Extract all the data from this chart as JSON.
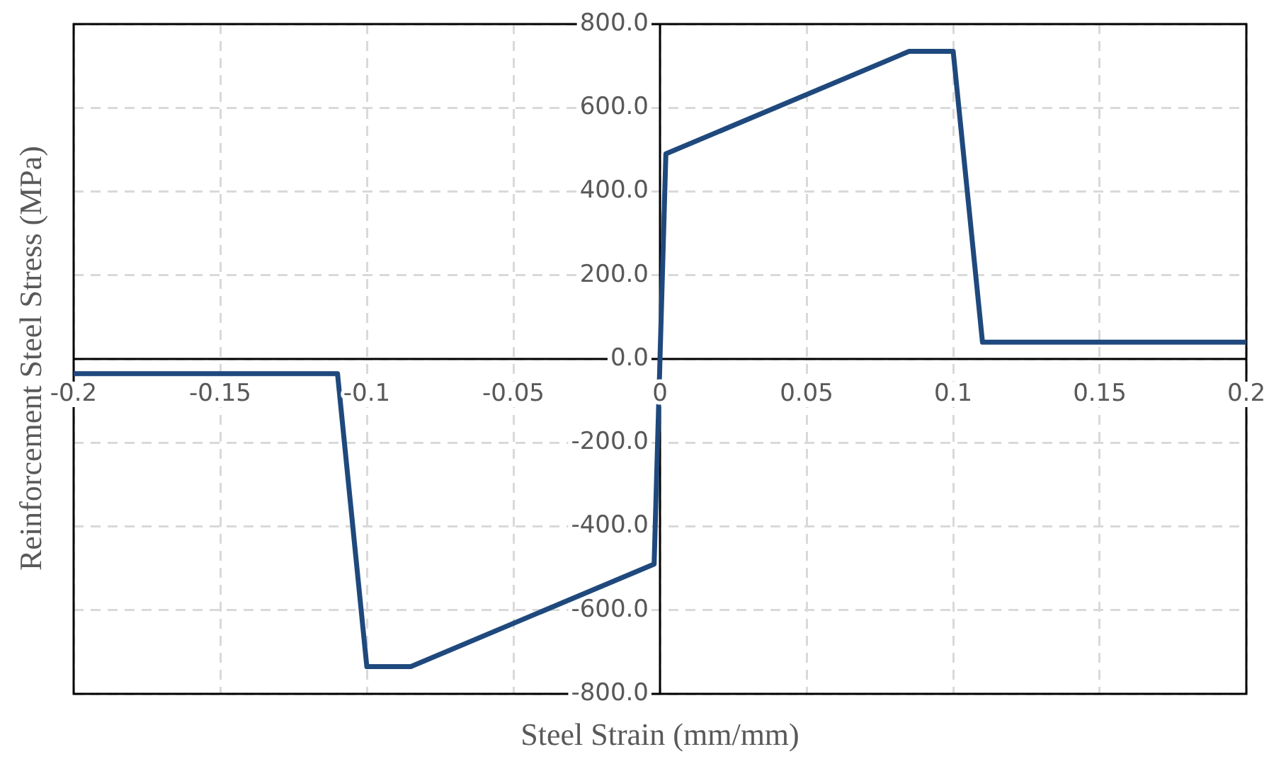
{
  "chart_data": {
    "type": "line",
    "xlabel": "Steel Strain (mm/mm)",
    "ylabel": "Reinforcement Steel Stress (MPa)",
    "x": [
      -0.2,
      -0.11,
      -0.1,
      -0.085,
      -0.002,
      0.002,
      0.085,
      0.1,
      0.11,
      0.2
    ],
    "series": [
      {
        "color": "#1f497d",
        "values": [
          -35,
          -35,
          -735,
          -735,
          -490,
          490,
          735,
          735,
          40,
          40
        ]
      }
    ],
    "xlim": [
      -0.2,
      0.2
    ],
    "xticks": [
      -0.2,
      -0.15,
      -0.1,
      -0.05,
      0,
      0.05,
      0.1,
      0.15,
      0.2
    ],
    "ylim": [
      -800,
      800
    ],
    "yticks": [
      {
        "value": -800,
        "label": "-800.0"
      },
      {
        "value": -600,
        "label": "-600.0"
      },
      {
        "value": -400,
        "label": "-400.0"
      },
      {
        "value": -200,
        "label": "-200.0"
      },
      {
        "value": 0,
        "label": "0.0"
      },
      {
        "value": 200,
        "label": "200.0"
      },
      {
        "value": 400,
        "label": "400.0"
      },
      {
        "value": 600,
        "label": "600.0"
      },
      {
        "value": 800,
        "label": "800.0"
      }
    ],
    "grid": true,
    "legend": false,
    "marker": "none",
    "line_style": "solid"
  }
}
